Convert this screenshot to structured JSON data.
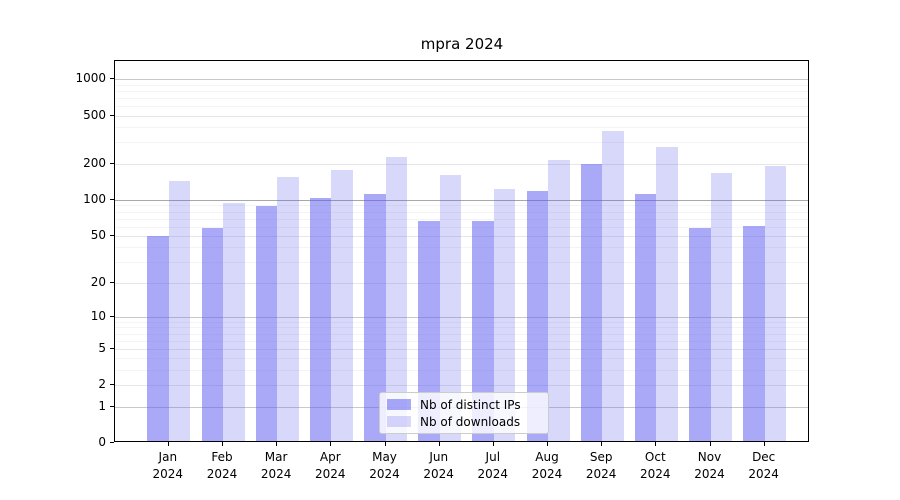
{
  "title": "mpra 2024",
  "chart_data": {
    "type": "bar",
    "title": "mpra 2024",
    "x_months": [
      "Jan",
      "Feb",
      "Mar",
      "Apr",
      "May",
      "Jun",
      "Jul",
      "Aug",
      "Sep",
      "Oct",
      "Nov",
      "Dec"
    ],
    "x_year": "2024",
    "series": [
      {
        "name": "Nb of distinct IPs",
        "color": "rgba(90,90,240,0.52)",
        "values": [
          48,
          56,
          86,
          99,
          107,
          64,
          64,
          114,
          192,
          108,
          56,
          58
        ]
      },
      {
        "name": "Nb of downloads",
        "color": "rgba(90,90,240,0.24)",
        "values": [
          139,
          90,
          150,
          170,
          219,
          156,
          119,
          205,
          358,
          264,
          162,
          184
        ]
      }
    ],
    "y_axis": {
      "scale": "log1p",
      "tick_values": [
        0,
        1,
        2,
        5,
        10,
        20,
        50,
        100,
        200,
        500,
        1000
      ],
      "tick_labels": [
        "0",
        "1",
        "2",
        "5",
        "10",
        "20",
        "50",
        "100",
        "200",
        "500",
        "1000"
      ],
      "max": 1410,
      "medium_gridlines": [
        1,
        10,
        1000
      ],
      "strong_gridlines": [
        100
      ],
      "grid": true
    },
    "legend_position": "bottom-center"
  }
}
